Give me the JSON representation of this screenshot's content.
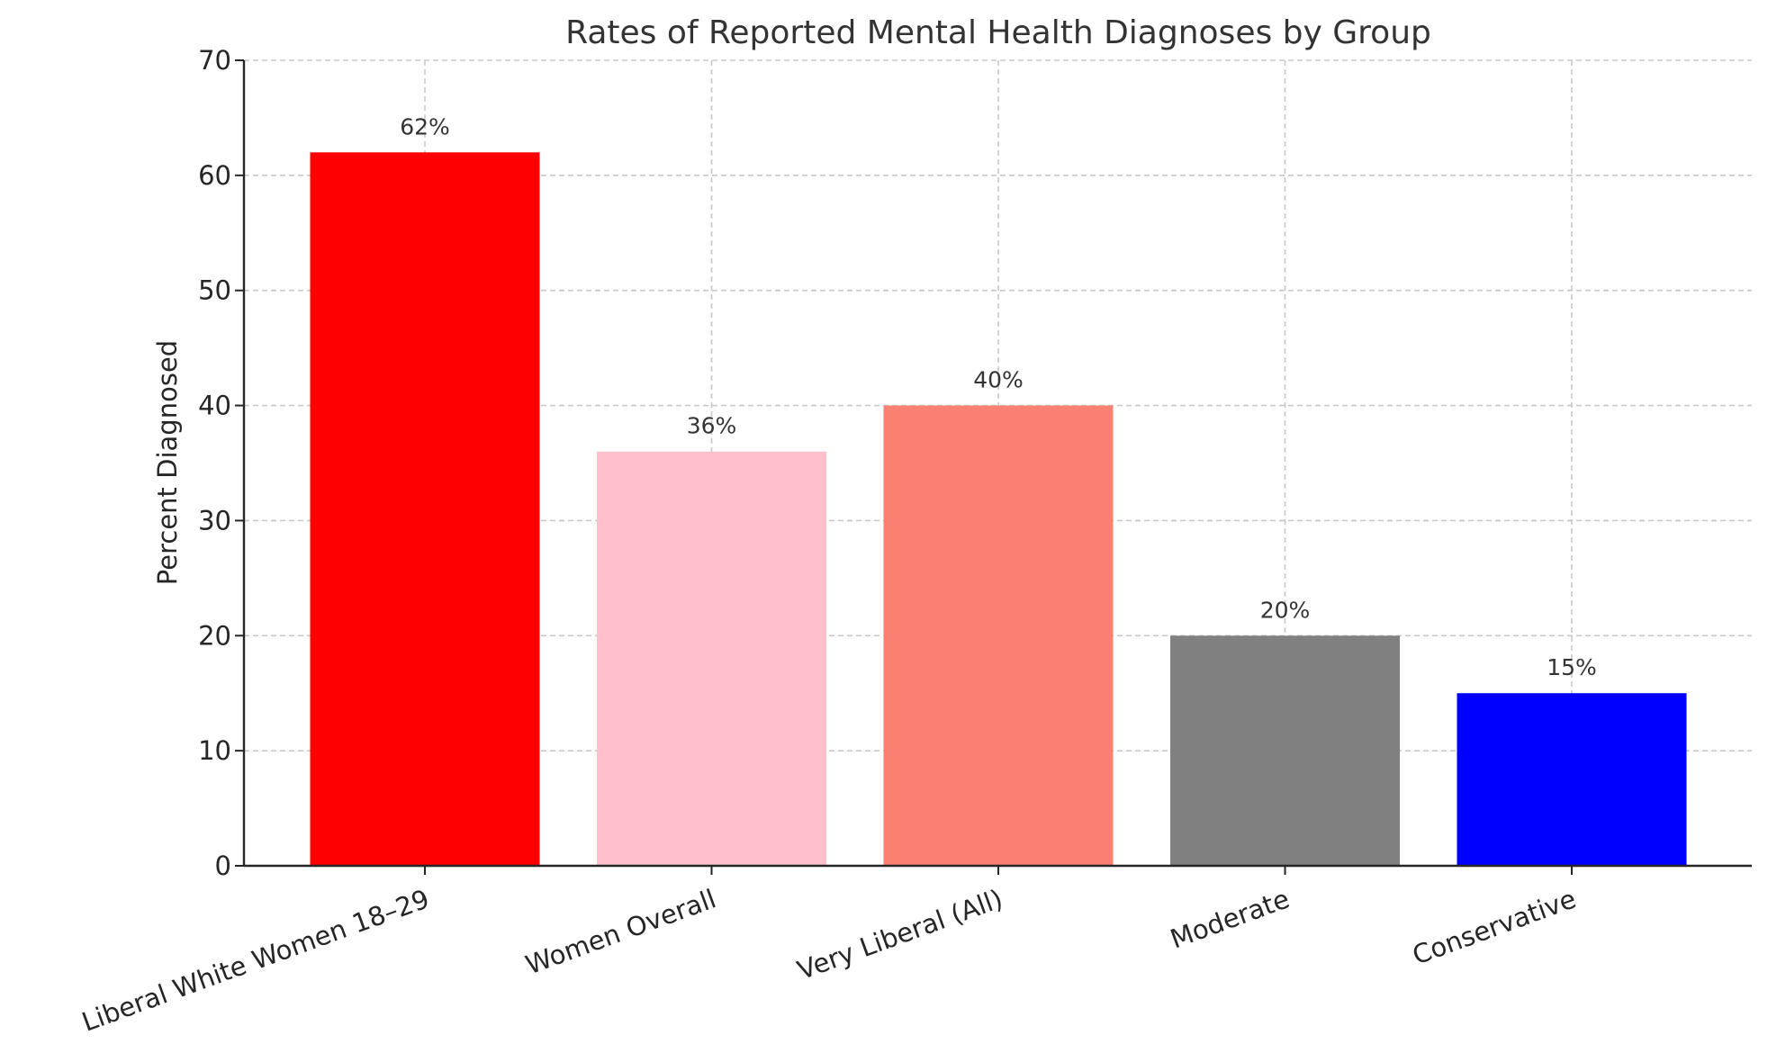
{
  "chart_data": {
    "type": "bar",
    "title": "Rates of Reported Mental Health Diagnoses by Group",
    "xlabel": "",
    "ylabel": "Percent Diagnosed",
    "ylim": [
      0,
      70
    ],
    "yticks": [
      0,
      10,
      20,
      30,
      40,
      50,
      60,
      70
    ],
    "categories": [
      "Liberal White Women 18–29",
      "Women Overall",
      "Very Liberal (All)",
      "Moderate",
      "Conservative"
    ],
    "values": [
      62,
      36,
      40,
      20,
      15
    ],
    "data_labels": [
      "62%",
      "36%",
      "40%",
      "20%",
      "15%"
    ],
    "colors": [
      "#ff0000",
      "#ffc0cb",
      "#fa8072",
      "#808080",
      "#0000ff"
    ],
    "grid": true,
    "legend": "none"
  }
}
